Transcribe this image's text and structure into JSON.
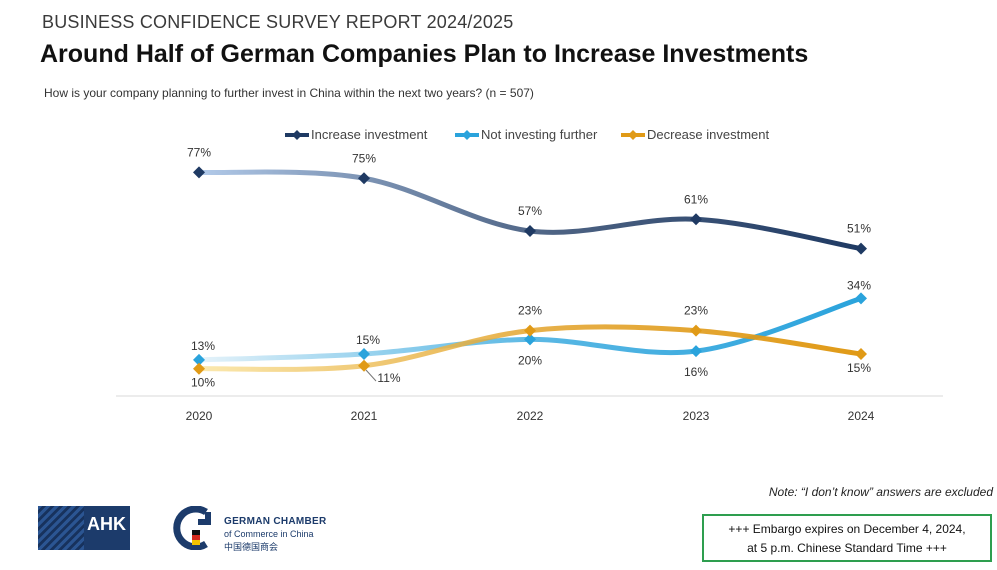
{
  "report_tag": "BUSINESS CONFIDENCE SURVEY REPORT 2024/2025",
  "title": "Around Half of German Companies Plan to Increase Investments",
  "subtitle": "How is your company planning to further invest in China within the next two years? (n = 507)",
  "note": "Note: “I don’t know” answers are excluded",
  "embargo": {
    "line1": "+++ Embargo expires on December 4, 2024,",
    "line2": "at 5 p.m. Chinese Standard Time +++"
  },
  "logos": {
    "ahk": "AHK",
    "gc_line1": "GERMAN CHAMBER",
    "gc_line2": "of Commerce in China",
    "gc_line3": "中国德国商会"
  },
  "chart_data": {
    "type": "line",
    "x": [
      "2020",
      "2021",
      "2022",
      "2023",
      "2024"
    ],
    "ylim": [
      0,
      85
    ],
    "legend_position": "top",
    "grid": false,
    "series": [
      {
        "name": "Increase investment",
        "values": [
          77,
          75,
          57,
          61,
          51
        ],
        "labels": [
          "77%",
          "75%",
          "57%",
          "61%",
          "51%"
        ],
        "color": "#1f3a63",
        "color_light": "#b3cbea"
      },
      {
        "name": "Not investing further",
        "values": [
          13,
          15,
          20,
          16,
          34
        ],
        "labels": [
          "13%",
          "15%",
          "20%",
          "16%",
          "34%"
        ],
        "color": "#2aa3dc",
        "color_light": "#e6f3fa"
      },
      {
        "name": "Decrease investment",
        "values": [
          10,
          11,
          23,
          23,
          15
        ],
        "labels": [
          "10%",
          "11%",
          "23%",
          "23%",
          "15%"
        ],
        "color": "#e09a17",
        "color_light": "#fbe9b0"
      }
    ]
  }
}
